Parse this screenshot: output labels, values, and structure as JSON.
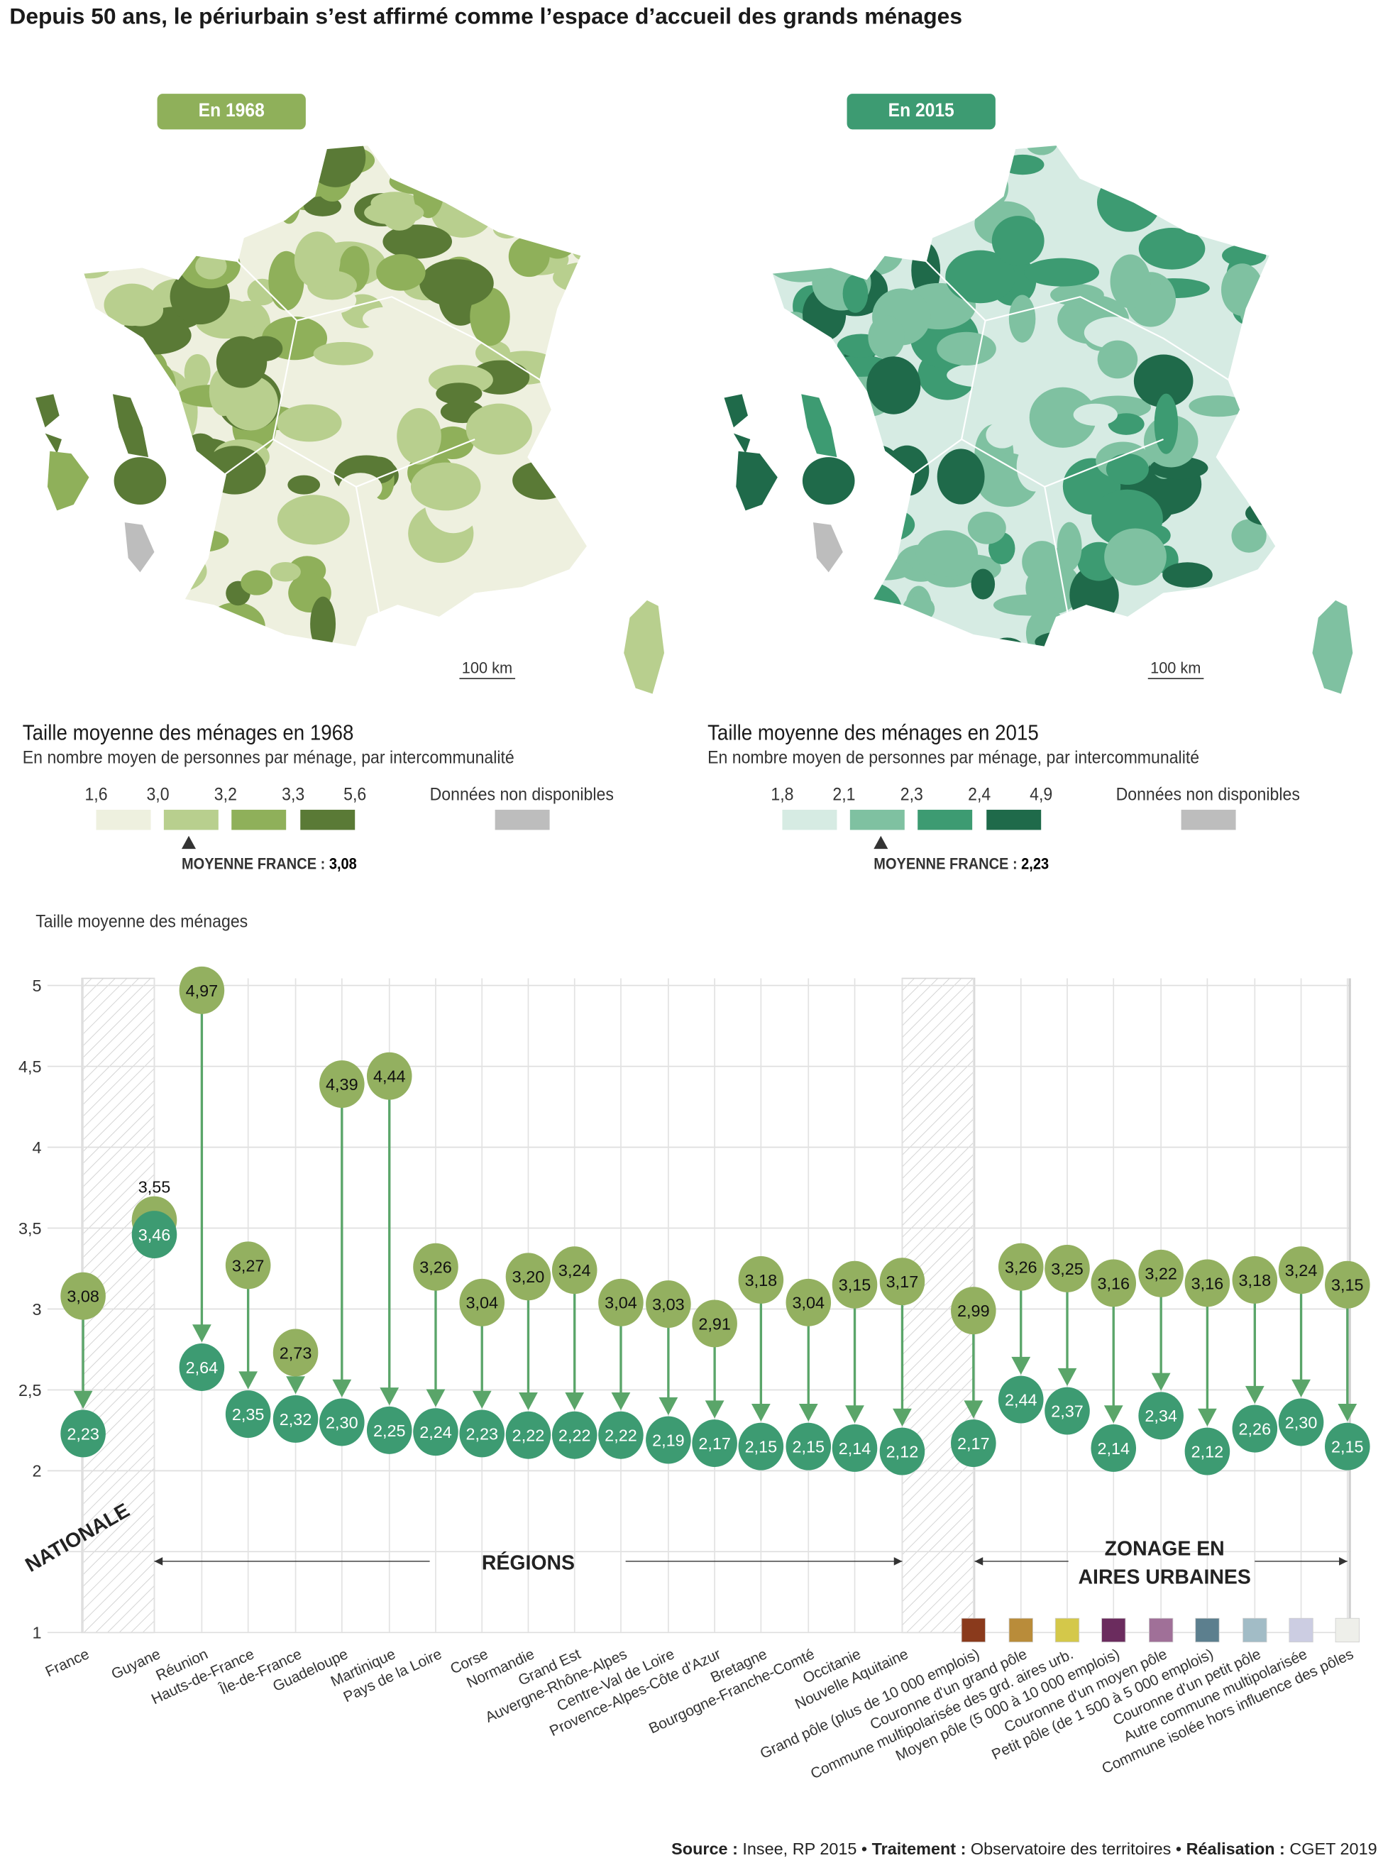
{
  "title": "Depuis 50 ans, le périurbain s’est affirmé comme l’espace d’accueil des grands ménages",
  "maps": [
    {
      "badge": "En 1968",
      "badge_color": "#8fb05a",
      "scale_label": "100 km",
      "legend_title": "Taille moyenne des ménages en 1968",
      "legend_subtitle": "En nombre moyen de personnes par ménage, par intercommunalité",
      "breaks": [
        "1,6",
        "3,0",
        "3,2",
        "3,3",
        "5,6"
      ],
      "colors": [
        "#eef0df",
        "#b8cf8e",
        "#8fb05a",
        "#5a7a36"
      ],
      "na_label": "Données non disponibles",
      "na_color": "#bdbdbd",
      "mean_label": "MOYENNE FRANCE : ",
      "mean_value": "3,08"
    },
    {
      "badge": "En 2015",
      "badge_color": "#3d9b72",
      "scale_label": "100 km",
      "legend_title": "Taille moyenne des ménages en 2015",
      "legend_subtitle": "En nombre moyen de personnes par ménage, par intercommunalité",
      "breaks": [
        "1,8",
        "2,1",
        "2,3",
        "2,4",
        "4,9"
      ],
      "colors": [
        "#d6ebe3",
        "#7fc1a1",
        "#3d9b72",
        "#1f6a4a"
      ],
      "na_label": "Données non disponibles",
      "na_color": "#bdbdbd",
      "mean_label": "MOYENNE FRANCE : ",
      "mean_value": "2,23"
    }
  ],
  "chart_data": {
    "type": "scatter",
    "title": "",
    "ylabel": "Taille moyenne des ménages",
    "ylim": [
      1,
      5
    ],
    "yticks": [
      "1",
      "2",
      "2,5",
      "3",
      "3,5",
      "4",
      "4,5",
      "5"
    ],
    "yticks_values": [
      1,
      2,
      2.5,
      3,
      3.5,
      4,
      4.5,
      5
    ],
    "series_names": [
      "1968",
      "2015"
    ],
    "colors": {
      "1968": "#93b060",
      "2015": "#3d9b72",
      "arrow": "#5aa569"
    },
    "groups": [
      {
        "label": "NATIONALE"
      },
      {
        "label": "RÉGIONS"
      },
      {
        "label_lines": [
          "ZONAGE EN",
          "AIRES URBAINES"
        ]
      }
    ],
    "categories": [
      {
        "name": "France",
        "v1968": 3.08,
        "v2015": 2.23,
        "l1968": "3,08",
        "l2015": "2,23"
      },
      {
        "name": "Guyane",
        "v1968": 3.55,
        "v2015": 3.46,
        "l1968": "3,55",
        "l2015": "3,46"
      },
      {
        "name": "Réunion",
        "v1968": 4.97,
        "v2015": 2.64,
        "l1968": "4,97",
        "l2015": "2,64"
      },
      {
        "name": "Hauts-de-France",
        "v1968": 3.27,
        "v2015": 2.35,
        "l1968": "3,27",
        "l2015": "2,35"
      },
      {
        "name": "Île-de-France",
        "v1968": 2.73,
        "v2015": 2.32,
        "l1968": "2,73",
        "l2015": "2,32"
      },
      {
        "name": "Guadeloupe",
        "v1968": 4.39,
        "v2015": 2.3,
        "l1968": "4,39",
        "l2015": "2,30"
      },
      {
        "name": "Martinique",
        "v1968": 4.44,
        "v2015": 2.25,
        "l1968": "4,44",
        "l2015": "2,25"
      },
      {
        "name": "Pays de la Loire",
        "v1968": 3.26,
        "v2015": 2.24,
        "l1968": "3,26",
        "l2015": "2,24"
      },
      {
        "name": "Corse",
        "v1968": 3.04,
        "v2015": 2.23,
        "l1968": "3,04",
        "l2015": "2,23"
      },
      {
        "name": "Normandie",
        "v1968": 3.2,
        "v2015": 2.22,
        "l1968": "3,20",
        "l2015": "2,22"
      },
      {
        "name": "Grand Est",
        "v1968": 3.24,
        "v2015": 2.22,
        "l1968": "3,24",
        "l2015": "2,22"
      },
      {
        "name": "Auvergne-Rhône-Alpes",
        "v1968": 3.04,
        "v2015": 2.22,
        "l1968": "3,04",
        "l2015": "2,22"
      },
      {
        "name": "Centre-Val de Loire",
        "v1968": 3.03,
        "v2015": 2.19,
        "l1968": "3,03",
        "l2015": "2,19"
      },
      {
        "name": "Provence-Alpes-Côte d'Azur",
        "v1968": 2.91,
        "v2015": 2.17,
        "l1968": "2,91",
        "l2015": "2,17"
      },
      {
        "name": "Bretagne",
        "v1968": 3.18,
        "v2015": 2.15,
        "l1968": "3,18",
        "l2015": "2,15"
      },
      {
        "name": "Bourgogne-Franche-Comté",
        "v1968": 3.04,
        "v2015": 2.15,
        "l1968": "3,04",
        "l2015": "2,15"
      },
      {
        "name": "Occitanie",
        "v1968": 3.15,
        "v2015": 2.14,
        "l1968": "3,15",
        "l2015": "2,14"
      },
      {
        "name": "Nouvelle Aquitaine",
        "v1968": 3.17,
        "v2015": 2.12,
        "l1968": "3,17",
        "l2015": "2,12"
      },
      {
        "name": "Grand pôle (plus de 10 000 emplois)",
        "v1968": 2.99,
        "v2015": 2.17,
        "l1968": "2,99",
        "l2015": "2,17",
        "swatch": "#8a3a1c"
      },
      {
        "name": "Couronne d'un grand pôle",
        "v1968": 3.26,
        "v2015": 2.44,
        "l1968": "3,26",
        "l2015": "2,44",
        "swatch": "#b98c3a"
      },
      {
        "name": "Commune multipolarisée des grd. aires urb.",
        "v1968": 3.25,
        "v2015": 2.37,
        "l1968": "3,25",
        "l2015": "2,37",
        "swatch": "#d4c84a"
      },
      {
        "name": "Moyen pôle (5 000 à 10 000 emplois)",
        "v1968": 3.16,
        "v2015": 2.14,
        "l1968": "3,16",
        "l2015": "2,14",
        "swatch": "#6b2c5e"
      },
      {
        "name": "Couronne d'un moyen pôle",
        "v1968": 3.22,
        "v2015": 2.34,
        "l1968": "3,22",
        "l2015": "2,34",
        "swatch": "#a07098"
      },
      {
        "name": "Petit pôle (de 1 500 à 5 000 emplois)",
        "v1968": 3.16,
        "v2015": 2.12,
        "l1968": "3,16",
        "l2015": "2,12",
        "swatch": "#5c7f8e"
      },
      {
        "name": "Couronne d'un petit pôle",
        "v1968": 3.18,
        "v2015": 2.26,
        "l1968": "3,18",
        "l2015": "2,26",
        "swatch": "#a2bcc6"
      },
      {
        "name": "Autre commune multipolarisée",
        "v1968": 3.24,
        "v2015": 2.3,
        "l1968": "3,24",
        "l2015": "2,30",
        "swatch": "#cccde2"
      },
      {
        "name": "Commune isolée hors influence des pôles",
        "v1968": 3.15,
        "v2015": 2.15,
        "l1968": "3,15",
        "l2015": "2,15",
        "swatch": "#eeefea"
      }
    ]
  },
  "footer": {
    "source_label": "Source :",
    "source": " Insee, RP 2015 • ",
    "traitement_label": "Traitement :",
    "traitement": " Observatoire des territoires • ",
    "realisation_label": "Réalisation :",
    "realisation": " CGET 2019"
  }
}
